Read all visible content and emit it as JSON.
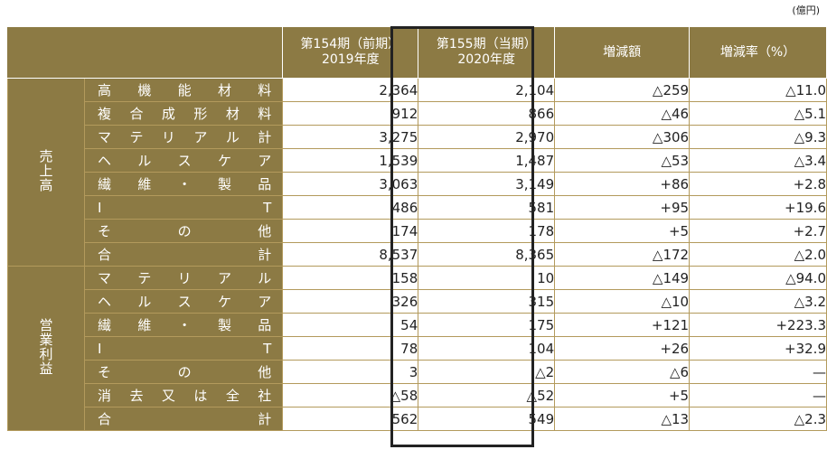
{
  "unit": "(億円)",
  "header": {
    "prev_period_line1": "第154期（前期）",
    "prev_period_line2": "2019年度",
    "cur_period_line1": "第155期（当期）",
    "cur_period_line2": "2020年度",
    "change_amount": "増減額",
    "change_rate": "増減率（%）"
  },
  "sections": [
    {
      "group": "売上高",
      "rows": [
        {
          "label": [
            "高",
            "機",
            "能",
            "材",
            "料"
          ],
          "prev": "2,364",
          "cur": "2,104",
          "diff": "△259",
          "rate": "△11.0"
        },
        {
          "label": [
            "複",
            "合",
            "成",
            "形",
            "材",
            "料"
          ],
          "prev": "912",
          "cur": "866",
          "diff": "△46",
          "rate": "△5.1"
        },
        {
          "label": [
            "マ",
            "テ",
            "リ",
            "ア",
            "ル",
            "計"
          ],
          "prev": "3,275",
          "cur": "2,970",
          "diff": "△306",
          "rate": "△9.3"
        },
        {
          "label": [
            "ヘ",
            "ル",
            "ス",
            "ケ",
            "ア"
          ],
          "prev": "1,539",
          "cur": "1,487",
          "diff": "△53",
          "rate": "△3.4"
        },
        {
          "label": [
            "繊",
            "維",
            "・",
            "製",
            "品"
          ],
          "prev": "3,063",
          "cur": "3,149",
          "diff": "+86",
          "rate": "+2.8"
        },
        {
          "label": [
            "I",
            "T"
          ],
          "prev": "486",
          "cur": "581",
          "diff": "+95",
          "rate": "+19.6"
        },
        {
          "label": [
            "そ",
            "の",
            "他"
          ],
          "prev": "174",
          "cur": "178",
          "diff": "+5",
          "rate": "+2.7"
        },
        {
          "label": [
            "合",
            "計"
          ],
          "prev": "8,537",
          "cur": "8,365",
          "diff": "△172",
          "rate": "△2.0",
          "total": true
        }
      ]
    },
    {
      "group": "営業利益",
      "rows": [
        {
          "label": [
            "マ",
            "テ",
            "リ",
            "ア",
            "ル"
          ],
          "prev": "158",
          "cur": "10",
          "diff": "△149",
          "rate": "△94.0"
        },
        {
          "label": [
            "ヘ",
            "ル",
            "ス",
            "ケ",
            "ア"
          ],
          "prev": "326",
          "cur": "315",
          "diff": "△10",
          "rate": "△3.2"
        },
        {
          "label": [
            "繊",
            "維",
            "・",
            "製",
            "品"
          ],
          "prev": "54",
          "cur": "175",
          "diff": "+121",
          "rate": "+223.3"
        },
        {
          "label": [
            "I",
            "T"
          ],
          "prev": "78",
          "cur": "104",
          "diff": "+26",
          "rate": "+32.9"
        },
        {
          "label": [
            "そ",
            "の",
            "他"
          ],
          "prev": "3",
          "cur": "△2",
          "diff": "△6",
          "rate": "—"
        },
        {
          "label": [
            "消",
            "去",
            "又",
            "は",
            "全",
            "社"
          ],
          "prev": "△58",
          "cur": "△52",
          "diff": "+5",
          "rate": "—"
        },
        {
          "label": [
            "合",
            "計"
          ],
          "prev": "562",
          "cur": "549",
          "diff": "△13",
          "rate": "△2.3",
          "total": true
        }
      ]
    }
  ]
}
